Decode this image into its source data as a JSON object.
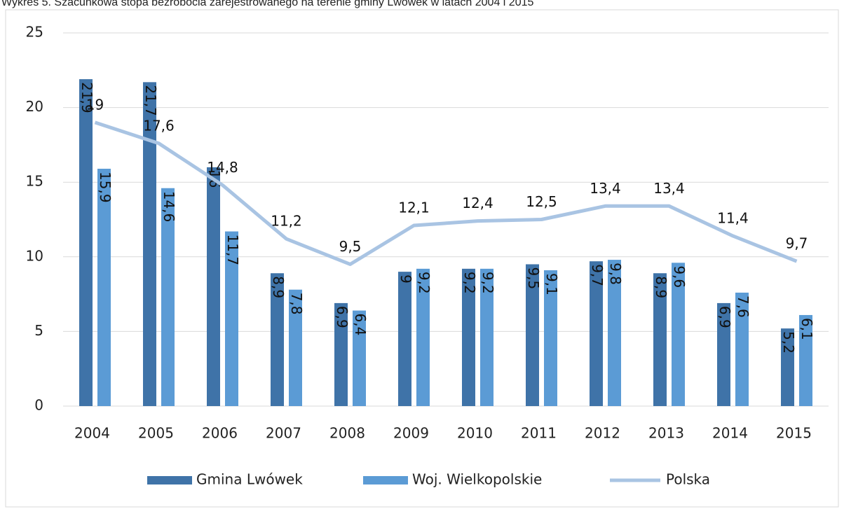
{
  "chart_data": {
    "type": "bar",
    "title": "Wykres 5. Szacunkowa stopa bezrobocia zarejestrowanego na terenie gminy Lwówek w latach 2004 i 2015",
    "categories": [
      "2004",
      "2005",
      "2006",
      "2007",
      "2008",
      "2009",
      "2010",
      "2011",
      "2012",
      "2013",
      "2014",
      "2015"
    ],
    "series": [
      {
        "name": "Gmina Lwówek",
        "color": "#3f73a8",
        "type": "bar",
        "values": [
          21.9,
          21.7,
          16,
          8.9,
          6.9,
          9,
          9.2,
          9.5,
          9.7,
          8.9,
          6.9,
          5.2
        ],
        "value_labels": [
          "21,9",
          "21,7",
          "16",
          "8,9",
          "6,9",
          "9",
          "9,2",
          "9,5",
          "9,7",
          "8,9",
          "6,9",
          "5,2"
        ]
      },
      {
        "name": "Woj.  Wielkopolskie",
        "color": "#5b9bd5",
        "type": "bar",
        "values": [
          15.9,
          14.6,
          11.7,
          7.8,
          6.4,
          9.2,
          9.2,
          9.1,
          9.8,
          9.6,
          7.6,
          6.1
        ],
        "value_labels": [
          "15,9",
          "14,6",
          "11,7",
          "7,8",
          "6,4",
          "9,2",
          "9,2",
          "9,1",
          "9,8",
          "9,6",
          "7,6",
          "6,1"
        ]
      },
      {
        "name": "Polska",
        "color": "#a9c4e3",
        "type": "line",
        "values": [
          19,
          17.6,
          14.8,
          11.2,
          9.5,
          12.1,
          12.4,
          12.5,
          13.4,
          13.4,
          11.4,
          9.7
        ],
        "value_labels": [
          "19",
          "17,6",
          "14,8",
          "11,2",
          "9,5",
          "12,1",
          "12,4",
          "12,5",
          "13,4",
          "13,4",
          "11,4",
          "9,7"
        ]
      }
    ],
    "ylim": [
      0,
      25
    ],
    "yticks": [
      0,
      5,
      10,
      15,
      20,
      25
    ],
    "grid": true,
    "legend": "bottom"
  }
}
